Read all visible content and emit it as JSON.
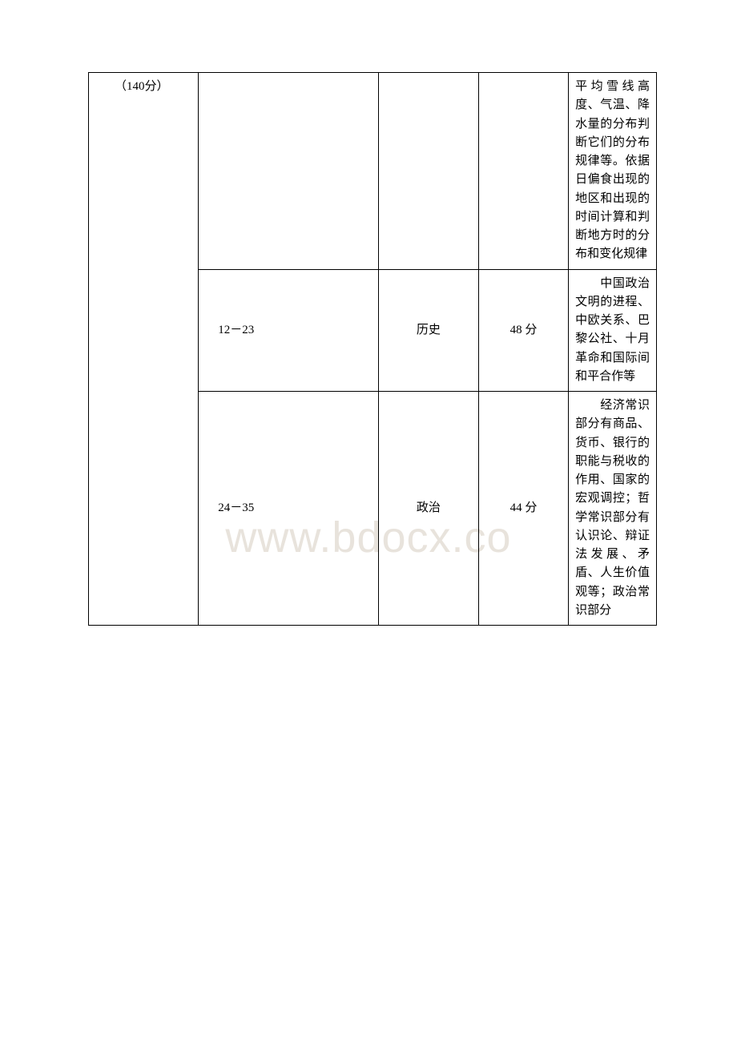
{
  "watermark": "www.bdocx.co",
  "col1": "（140分）",
  "rows": [
    {
      "col2": "",
      "col3": "",
      "col4": "",
      "col5": "平均雪线高度、气温、降水量的分布判断它们的分布规律等。依据日偏食出现的地区和出现的时间计算和判断地方时的分布和变化规律"
    },
    {
      "col2": "12－23",
      "col3": "历史",
      "col4": "48 分",
      "col5_prefix": "　　中国",
      "col5": "政治文明的进程、中欧关系、巴黎公社、十月革命和国际间和平合作等"
    },
    {
      "col2": "24－35",
      "col3": "政治",
      "col4": "44 分",
      "col5_prefix": "　　经济",
      "col5": "常识部分有商品、货币、银行的职能与税收的作用、国家的宏观调控；哲学常识部分有认识论、辩证法发展、矛盾、人生价值观等；政治常识部分"
    }
  ]
}
